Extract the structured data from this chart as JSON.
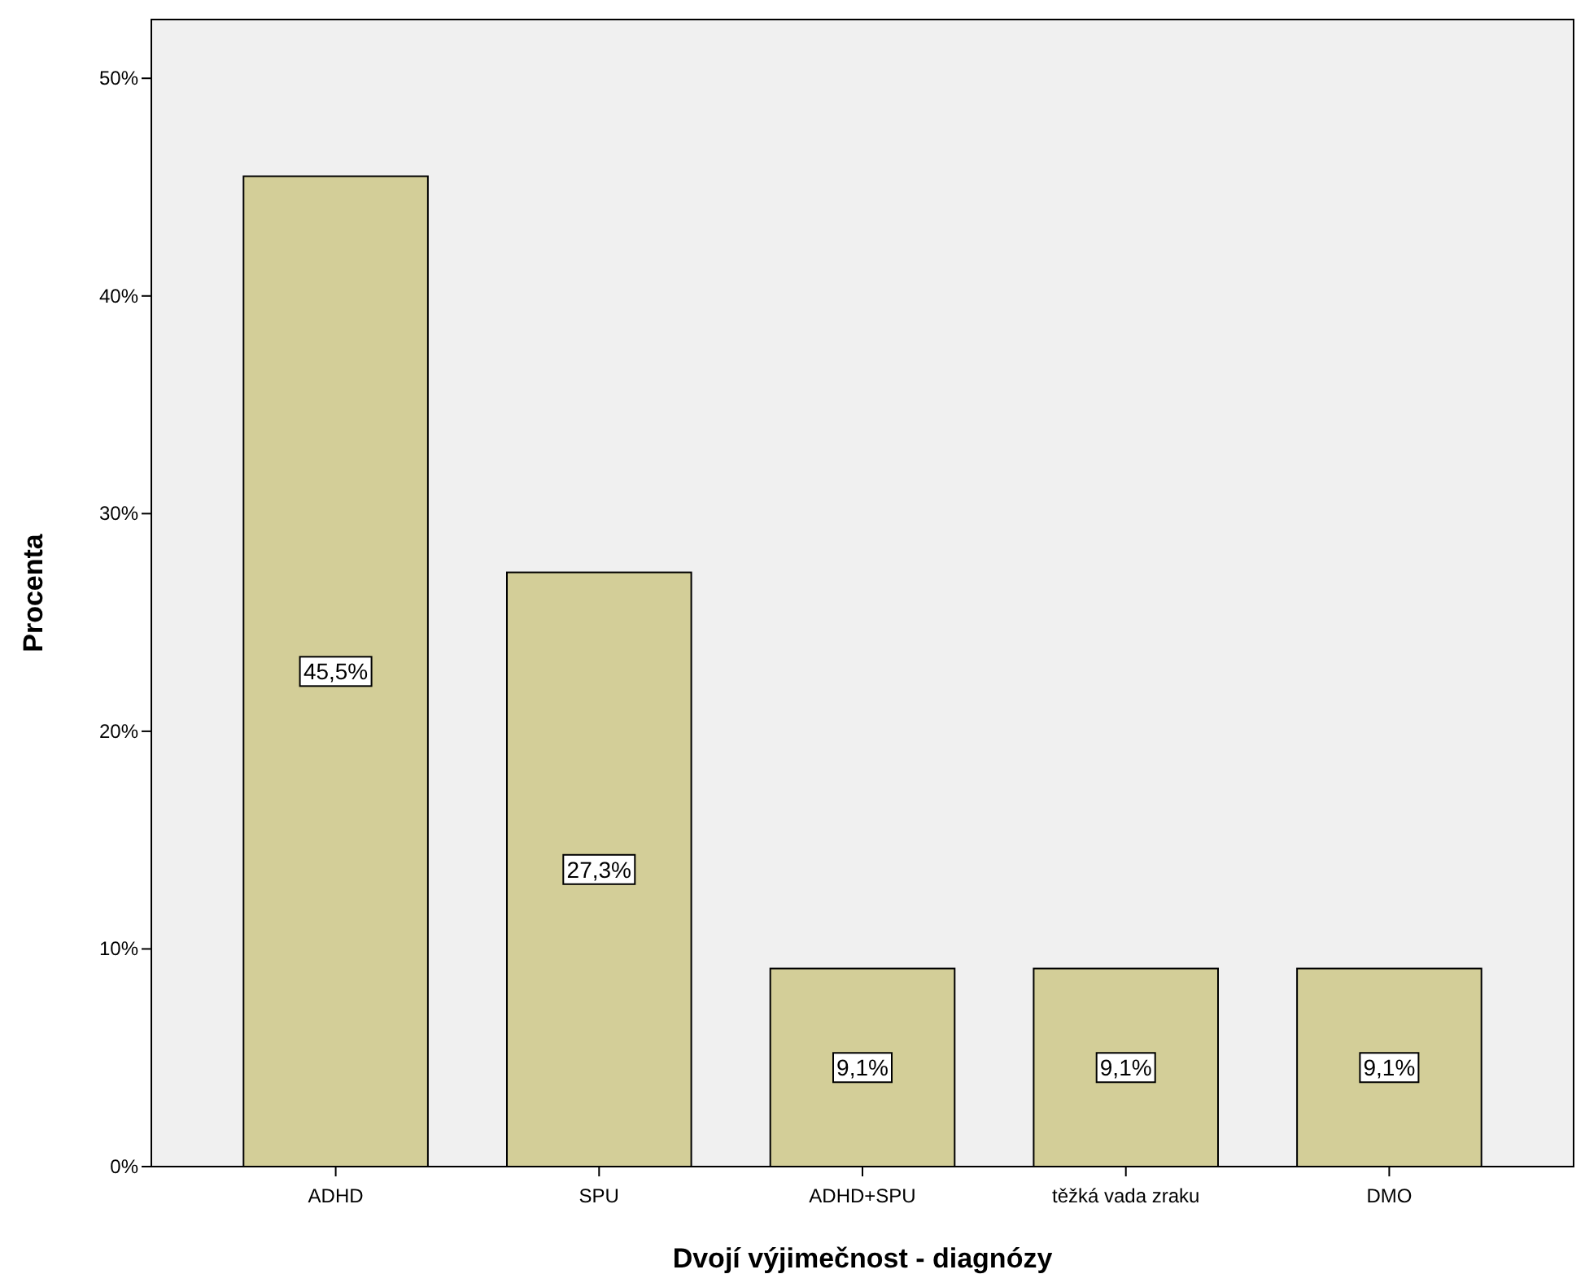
{
  "chart_data": {
    "type": "bar",
    "xlabel": "Dvojí výjimečnost - diagnózy",
    "ylabel": "Procenta",
    "categories": [
      "ADHD",
      "SPU",
      "ADHD+SPU",
      "těžká vada zraku",
      "DMO"
    ],
    "values": [
      45.5,
      27.3,
      9.1,
      9.1,
      9.1
    ],
    "color": "#d3ce98",
    "value_labels": [
      "45,5%",
      "27,3%",
      "9,1%",
      "9,1%",
      "9,1%"
    ],
    "ylim": [
      0,
      52.7
    ],
    "yticks": [
      {
        "value": 0,
        "label": "0%"
      },
      {
        "value": 10,
        "label": "10%"
      },
      {
        "value": 20,
        "label": "20%"
      },
      {
        "value": 30,
        "label": "30%"
      },
      {
        "value": 40,
        "label": "40%"
      },
      {
        "value": 50,
        "label": "50%"
      }
    ],
    "grid": false
  }
}
